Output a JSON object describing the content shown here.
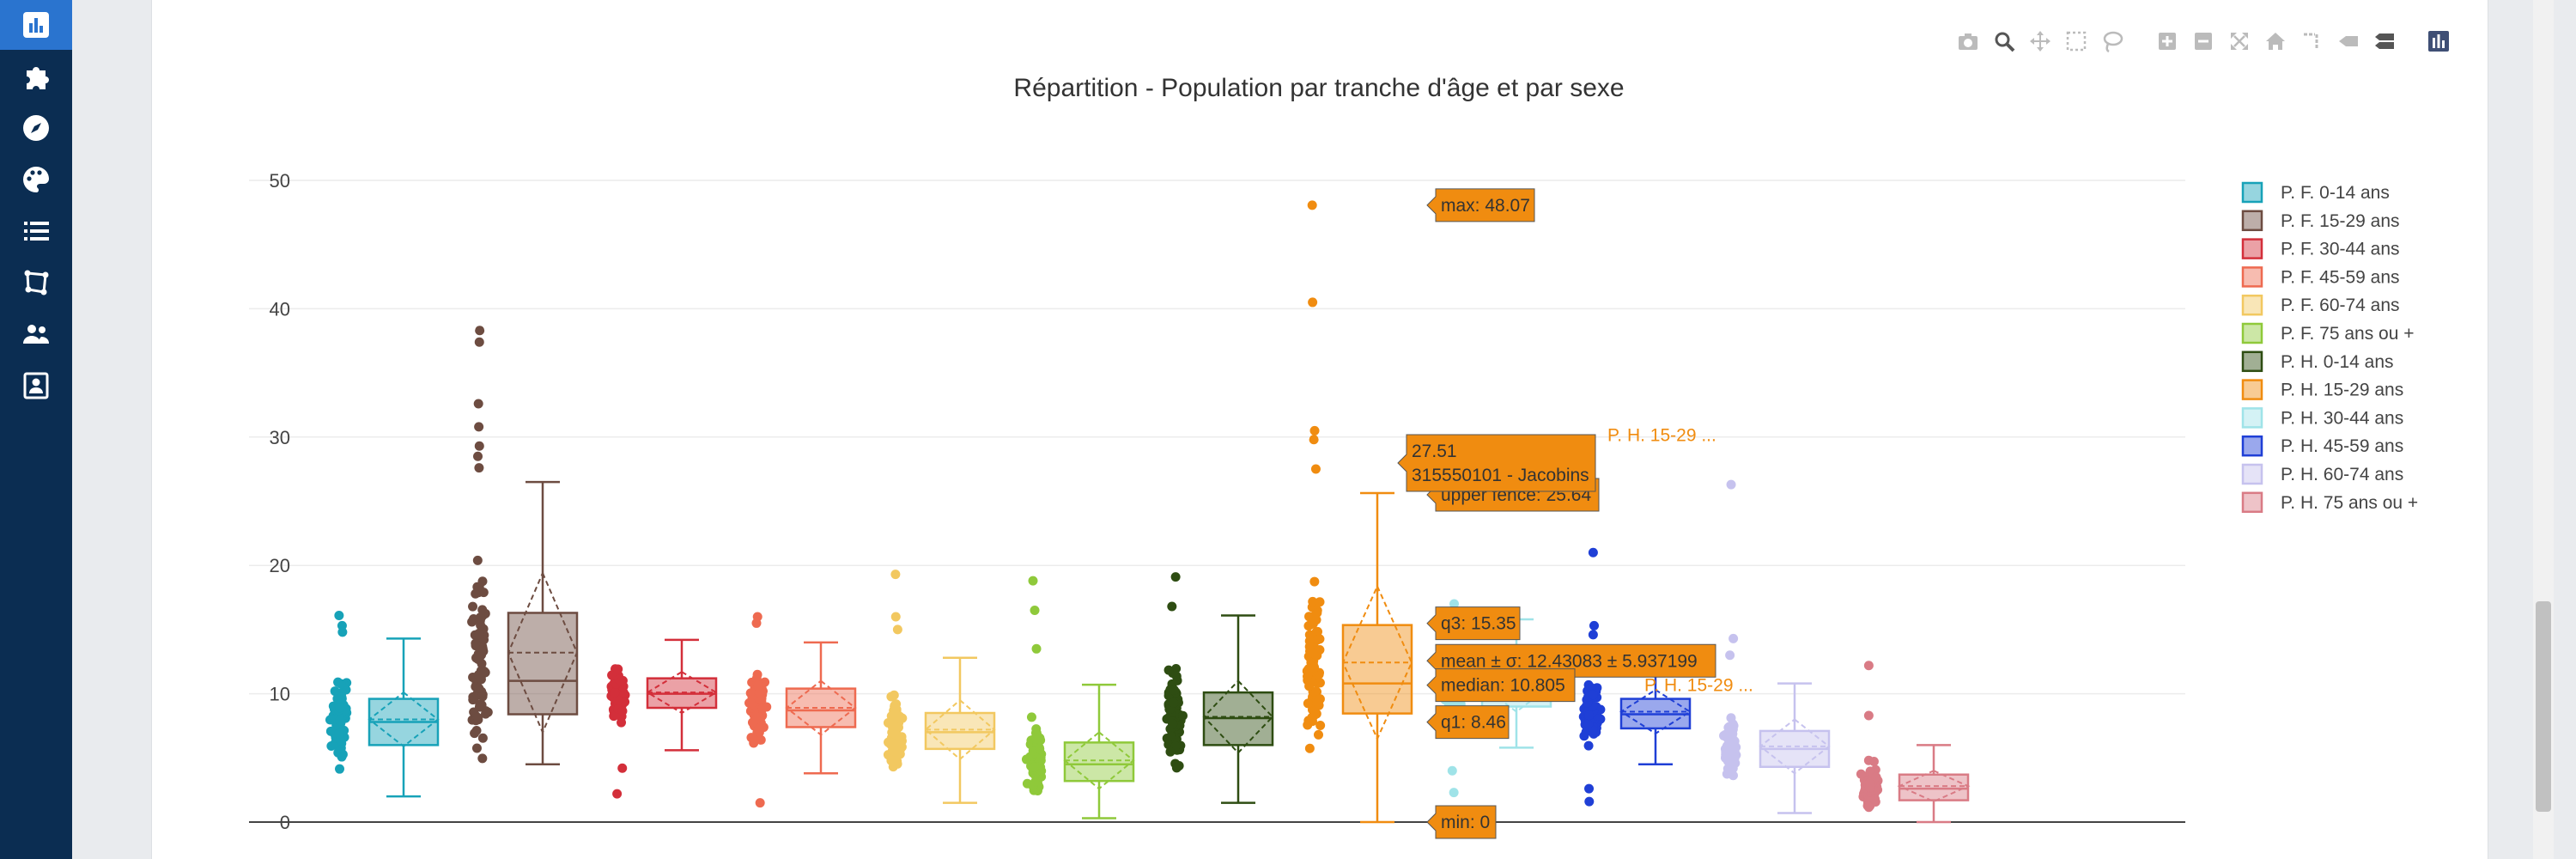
{
  "sidebar": {
    "items": [
      {
        "icon": "bar-chart-icon",
        "active": true
      },
      {
        "icon": "puzzle-icon",
        "active": false
      },
      {
        "icon": "compass-icon",
        "active": false
      },
      {
        "icon": "palette-icon",
        "active": false
      },
      {
        "icon": "list-icon",
        "active": false
      },
      {
        "icon": "map-polygon-icon",
        "active": false
      },
      {
        "icon": "users-icon",
        "active": false
      },
      {
        "icon": "contact-card-icon",
        "active": false
      }
    ]
  },
  "modebar": {
    "icons": [
      "camera-icon",
      "zoom-icon",
      "pan-icon",
      "box-select-icon",
      "lasso-select-icon",
      "zoom-in-icon",
      "zoom-out-icon",
      "autoscale-icon",
      "reset-axes-icon",
      "spike-lines-icon",
      "hover-closest-icon",
      "hover-compare-icon",
      "plotly-logo-icon"
    ]
  },
  "chart_data": {
    "type": "box",
    "title": "Répartition - Population par tranche d'âge et par sexe",
    "xlabel": "",
    "ylabel": "",
    "ylim": [
      0,
      50
    ],
    "yticks": [
      0,
      10,
      20,
      30,
      40,
      50
    ],
    "grid": true,
    "legend_position": "top-right",
    "series": [
      {
        "name": "P. F. 0-14 ans",
        "color": "#17a2b8",
        "min": 2,
        "q1": 6,
        "median": 7.8,
        "q3": 9.6,
        "max": 14.3,
        "mean": 8.0,
        "sd": 2.1,
        "outliers": [
          16.1,
          15.3,
          14.8
        ]
      },
      {
        "name": "P. F. 15-29 ans",
        "color": "#6d4c41",
        "min": 4.5,
        "q1": 8.4,
        "median": 11,
        "q3": 16.3,
        "max": 26.5,
        "mean": 13.2,
        "sd": 6.2,
        "outliers": [
          38.3,
          37.4,
          32.6,
          30.8,
          29.3,
          28.5,
          27.6
        ]
      },
      {
        "name": "P. F. 30-44 ans",
        "color": "#d32f3a",
        "min": 5.6,
        "q1": 8.9,
        "median": 10,
        "q3": 11.2,
        "max": 14.2,
        "mean": 10.1,
        "sd": 1.6,
        "outliers": [
          2.2,
          4.2
        ]
      },
      {
        "name": "P. F. 45-59 ans",
        "color": "#ee6a50",
        "min": 3.8,
        "q1": 7.4,
        "median": 8.7,
        "q3": 10.4,
        "max": 14,
        "mean": 8.9,
        "sd": 2.1,
        "outliers": [
          16.0,
          15.5,
          1.5
        ]
      },
      {
        "name": "P. F. 60-74 ans",
        "color": "#f2c860",
        "min": 1.5,
        "q1": 5.7,
        "median": 7,
        "q3": 8.5,
        "max": 12.8,
        "mean": 7.2,
        "sd": 2.3,
        "outliers": [
          19.3,
          16.0,
          15.0
        ]
      },
      {
        "name": "P. F. 75 ans ou +",
        "color": "#8fc93a",
        "min": 0.3,
        "q1": 3.2,
        "median": 4.5,
        "q3": 6.2,
        "max": 10.7,
        "mean": 4.8,
        "sd": 2.2,
        "outliers": [
          18.8,
          16.5,
          13.5
        ]
      },
      {
        "name": "P. H. 0-14 ans",
        "color": "#2e4d12",
        "min": 1.5,
        "q1": 6,
        "median": 8.1,
        "q3": 10.1,
        "max": 16.1,
        "mean": 8.2,
        "sd": 2.8,
        "outliers": [
          19.1,
          16.8
        ]
      },
      {
        "name": "P. H. 15-29 ans",
        "color": "#f08c10",
        "min": 0,
        "q1": 8.46,
        "median": 10.805,
        "q3": 15.35,
        "max": 25.64,
        "mean": 12.43083,
        "sd": 5.937199,
        "outliers": [
          48.07,
          40.5,
          30.5,
          29.8,
          27.51
        ]
      },
      {
        "name": "P. H. 30-44 ans",
        "color": "#9fe3e8",
        "min": 5.8,
        "q1": 9,
        "median": 10.5,
        "q3": 12,
        "max": 15.8,
        "mean": 10.6,
        "sd": 2.0,
        "outliers": [
          17.0,
          4.0,
          2.3
        ]
      },
      {
        "name": "P. H. 45-59 ans",
        "color": "#1f3fd6",
        "min": 4.5,
        "q1": 7.3,
        "median": 8.4,
        "q3": 9.6,
        "max": 12.8,
        "mean": 8.6,
        "sd": 1.7,
        "outliers": [
          21.0,
          15.3,
          14.6,
          1.6,
          2.6
        ]
      },
      {
        "name": "P. H. 60-74 ans",
        "color": "#c6c2ee",
        "min": 0.7,
        "q1": 4.3,
        "median": 5.7,
        "q3": 7.1,
        "max": 10.8,
        "mean": 5.9,
        "sd": 2.1,
        "outliers": [
          26.3,
          14.3,
          13.0
        ]
      },
      {
        "name": "P. H. 75 ans ou +",
        "color": "#d97b85",
        "min": 0,
        "q1": 1.7,
        "median": 2.6,
        "q3": 3.7,
        "max": 6,
        "mean": 2.8,
        "sd": 1.2,
        "outliers": [
          12.2,
          8.3
        ]
      }
    ],
    "hover": {
      "series": "P. H. 15-29 ans",
      "series_label_short": "P. H. 15-29 ...",
      "point_label": "27.51",
      "point_id": "315550101 - Jacobins",
      "labels": [
        {
          "key": "max",
          "text": "max: 48.07",
          "y": 48.07
        },
        {
          "key": "upper_fence",
          "text": "upper fence: 25.64",
          "y": 25.64
        },
        {
          "key": "q3",
          "text": "q3: 15.35",
          "y": 15.35
        },
        {
          "key": "mean",
          "text": "mean ± σ: 12.43083 ± 5.937199",
          "y": 12.43083
        },
        {
          "key": "median",
          "text": "median: 10.805",
          "y": 10.805
        },
        {
          "key": "q1",
          "text": "q1: 8.46",
          "y": 8.46
        },
        {
          "key": "min",
          "text": "min: 0",
          "y": 0
        }
      ]
    }
  }
}
